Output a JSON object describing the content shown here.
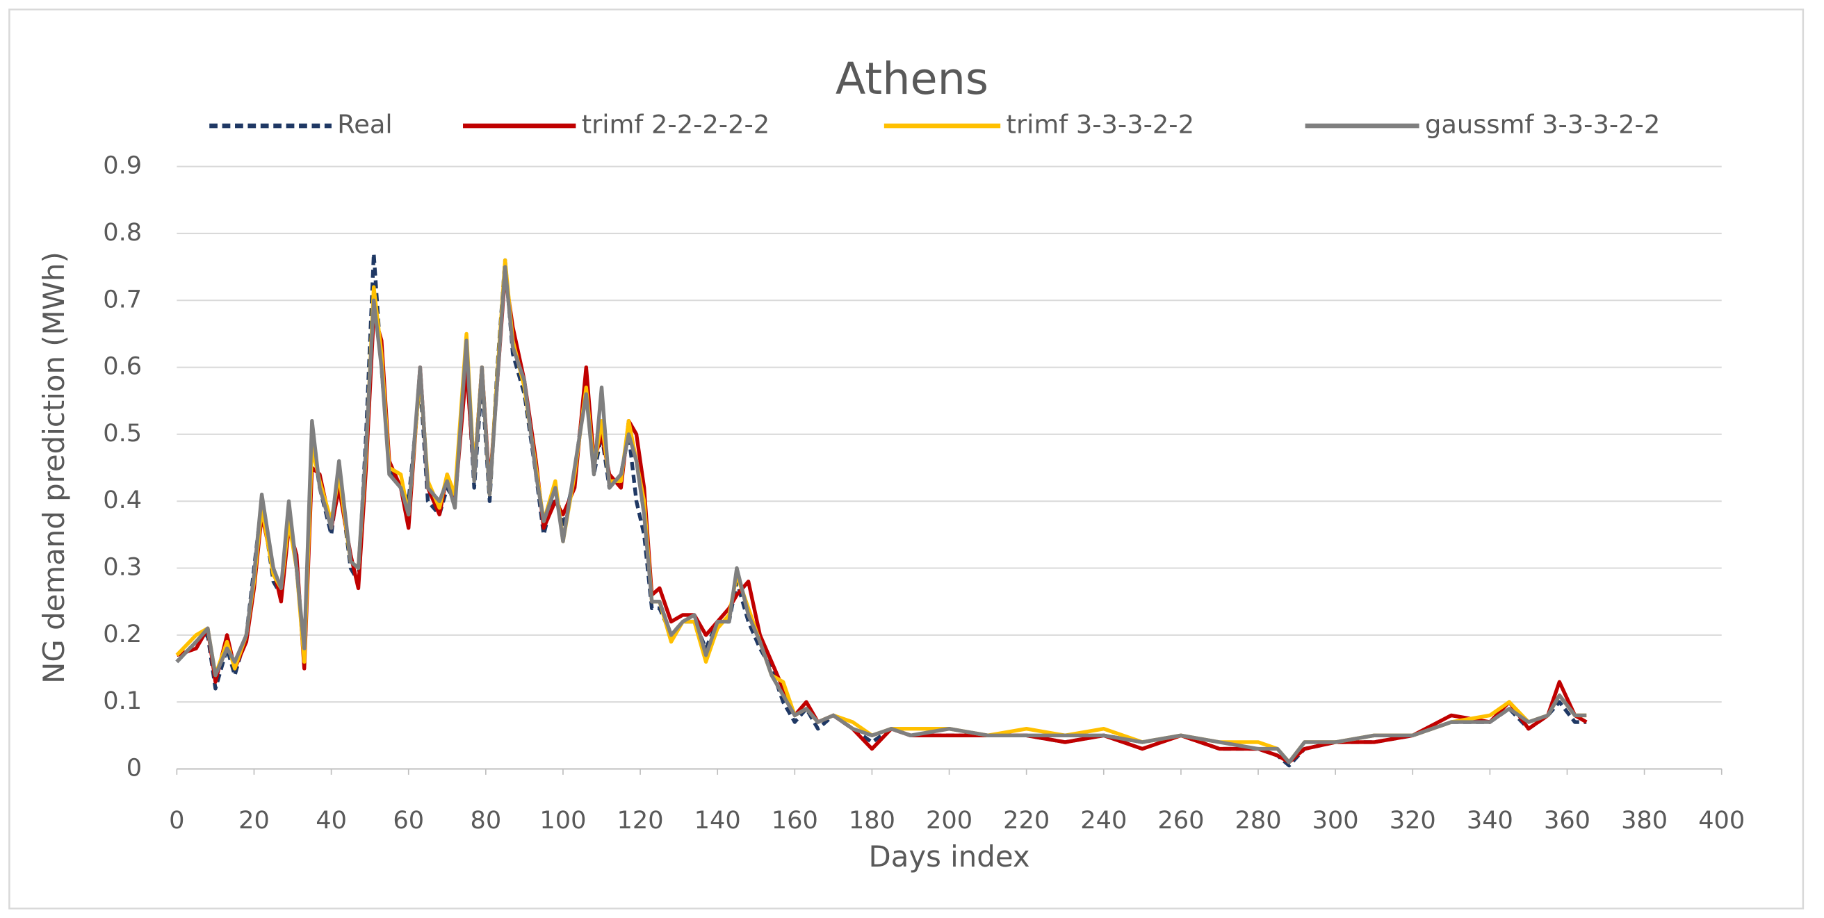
{
  "chart_data": {
    "type": "line",
    "title": "Athens",
    "x_label": "Days index",
    "y_label": "NG demand prediction (MWh)",
    "x": [
      0,
      5,
      8,
      10,
      13,
      15,
      18,
      20,
      22,
      25,
      27,
      29,
      31,
      33,
      35,
      37,
      40,
      42,
      45,
      47,
      49,
      51,
      53,
      55,
      58,
      60,
      63,
      65,
      68,
      70,
      72,
      75,
      77,
      79,
      81,
      83,
      85,
      87,
      90,
      93,
      95,
      98,
      100,
      103,
      106,
      108,
      110,
      112,
      115,
      117,
      119,
      121,
      123,
      125,
      128,
      131,
      134,
      137,
      140,
      143,
      145,
      148,
      151,
      154,
      157,
      160,
      163,
      166,
      170,
      175,
      180,
      185,
      190,
      200,
      210,
      220,
      230,
      240,
      250,
      260,
      270,
      280,
      285,
      288,
      292,
      300,
      310,
      320,
      330,
      340,
      345,
      350,
      355,
      358,
      362,
      365
    ],
    "series": [
      {
        "name": "Real",
        "color": "#1f3864",
        "line_style": "dashed",
        "values": [
          0.16,
          0.19,
          0.2,
          0.12,
          0.18,
          0.14,
          0.2,
          0.3,
          0.4,
          0.28,
          0.26,
          0.38,
          0.3,
          0.17,
          0.5,
          0.42,
          0.35,
          0.44,
          0.3,
          0.28,
          0.5,
          0.77,
          0.6,
          0.45,
          0.42,
          0.4,
          0.58,
          0.4,
          0.38,
          0.42,
          0.4,
          0.62,
          0.42,
          0.58,
          0.4,
          0.6,
          0.76,
          0.62,
          0.56,
          0.44,
          0.35,
          0.42,
          0.36,
          0.44,
          0.58,
          0.44,
          0.5,
          0.42,
          0.44,
          0.5,
          0.4,
          0.35,
          0.24,
          0.24,
          0.2,
          0.22,
          0.22,
          0.18,
          0.22,
          0.22,
          0.28,
          0.22,
          0.18,
          0.15,
          0.1,
          0.07,
          0.09,
          0.06,
          0.08,
          0.06,
          0.04,
          0.06,
          0.05,
          0.05,
          0.05,
          0.05,
          0.04,
          0.05,
          0.04,
          0.05,
          0.03,
          0.03,
          0.02,
          0.005,
          0.03,
          0.04,
          0.04,
          0.05,
          0.07,
          0.07,
          0.09,
          0.06,
          0.08,
          0.1,
          0.07,
          0.07
        ]
      },
      {
        "name": "trimf 2-2-2-2-2",
        "color": "#c00000",
        "line_style": "solid",
        "values": [
          0.17,
          0.18,
          0.21,
          0.13,
          0.2,
          0.15,
          0.19,
          0.27,
          0.38,
          0.3,
          0.25,
          0.36,
          0.32,
          0.15,
          0.45,
          0.44,
          0.36,
          0.42,
          0.32,
          0.27,
          0.45,
          0.68,
          0.64,
          0.46,
          0.42,
          0.36,
          0.6,
          0.42,
          0.38,
          0.44,
          0.4,
          0.6,
          0.44,
          0.6,
          0.42,
          0.58,
          0.74,
          0.66,
          0.58,
          0.46,
          0.36,
          0.4,
          0.38,
          0.42,
          0.6,
          0.46,
          0.5,
          0.44,
          0.42,
          0.52,
          0.5,
          0.42,
          0.26,
          0.27,
          0.22,
          0.23,
          0.23,
          0.2,
          0.22,
          0.24,
          0.26,
          0.28,
          0.2,
          0.16,
          0.12,
          0.08,
          0.1,
          0.07,
          0.08,
          0.06,
          0.03,
          0.06,
          0.05,
          0.05,
          0.05,
          0.05,
          0.04,
          0.05,
          0.03,
          0.05,
          0.03,
          0.03,
          0.02,
          0.01,
          0.03,
          0.04,
          0.04,
          0.05,
          0.08,
          0.07,
          0.1,
          0.06,
          0.08,
          0.13,
          0.08,
          0.07
        ]
      },
      {
        "name": "trimf 3-3-3-2-2",
        "color": "#ffc000",
        "line_style": "solid",
        "values": [
          0.17,
          0.2,
          0.21,
          0.14,
          0.19,
          0.15,
          0.2,
          0.28,
          0.39,
          0.29,
          0.27,
          0.37,
          0.3,
          0.16,
          0.48,
          0.43,
          0.37,
          0.44,
          0.31,
          0.3,
          0.47,
          0.72,
          0.62,
          0.45,
          0.44,
          0.38,
          0.59,
          0.43,
          0.39,
          0.44,
          0.41,
          0.65,
          0.44,
          0.6,
          0.41,
          0.59,
          0.76,
          0.64,
          0.57,
          0.45,
          0.37,
          0.43,
          0.34,
          0.44,
          0.57,
          0.45,
          0.52,
          0.43,
          0.43,
          0.52,
          0.46,
          0.4,
          0.25,
          0.25,
          0.19,
          0.22,
          0.22,
          0.16,
          0.21,
          0.23,
          0.29,
          0.24,
          0.19,
          0.14,
          0.13,
          0.08,
          0.09,
          0.07,
          0.08,
          0.07,
          0.05,
          0.06,
          0.06,
          0.06,
          0.05,
          0.06,
          0.05,
          0.06,
          0.04,
          0.05,
          0.04,
          0.04,
          0.03,
          0.01,
          0.04,
          0.04,
          0.05,
          0.05,
          0.07,
          0.08,
          0.1,
          0.07,
          0.08,
          0.11,
          0.08,
          0.08
        ]
      },
      {
        "name": "gaussmf 3-3-3-2-2",
        "color": "#7f7f7f",
        "line_style": "solid",
        "values": [
          0.16,
          0.19,
          0.21,
          0.14,
          0.18,
          0.16,
          0.2,
          0.29,
          0.41,
          0.3,
          0.27,
          0.4,
          0.3,
          0.18,
          0.52,
          0.42,
          0.36,
          0.46,
          0.31,
          0.3,
          0.48,
          0.7,
          0.6,
          0.44,
          0.42,
          0.38,
          0.6,
          0.42,
          0.4,
          0.43,
          0.39,
          0.64,
          0.43,
          0.6,
          0.41,
          0.58,
          0.75,
          0.63,
          0.58,
          0.44,
          0.37,
          0.42,
          0.34,
          0.45,
          0.56,
          0.44,
          0.57,
          0.42,
          0.44,
          0.5,
          0.46,
          0.38,
          0.25,
          0.25,
          0.2,
          0.22,
          0.23,
          0.17,
          0.22,
          0.22,
          0.3,
          0.23,
          0.19,
          0.14,
          0.11,
          0.08,
          0.09,
          0.07,
          0.08,
          0.06,
          0.05,
          0.06,
          0.05,
          0.06,
          0.05,
          0.05,
          0.05,
          0.05,
          0.04,
          0.05,
          0.04,
          0.03,
          0.03,
          0.01,
          0.04,
          0.04,
          0.05,
          0.05,
          0.07,
          0.07,
          0.09,
          0.07,
          0.08,
          0.11,
          0.08,
          0.08
        ]
      }
    ],
    "xlim": [
      0,
      400
    ],
    "xticks": [
      0,
      20,
      40,
      60,
      80,
      100,
      120,
      140,
      160,
      180,
      200,
      220,
      240,
      260,
      280,
      300,
      320,
      340,
      360,
      380,
      400
    ],
    "ylim": [
      0,
      0.9
    ],
    "yticks": [
      0,
      0.1,
      0.2,
      0.3,
      0.4,
      0.5,
      0.6,
      0.7,
      0.8,
      0.9
    ],
    "grid": true,
    "legend": "top"
  }
}
